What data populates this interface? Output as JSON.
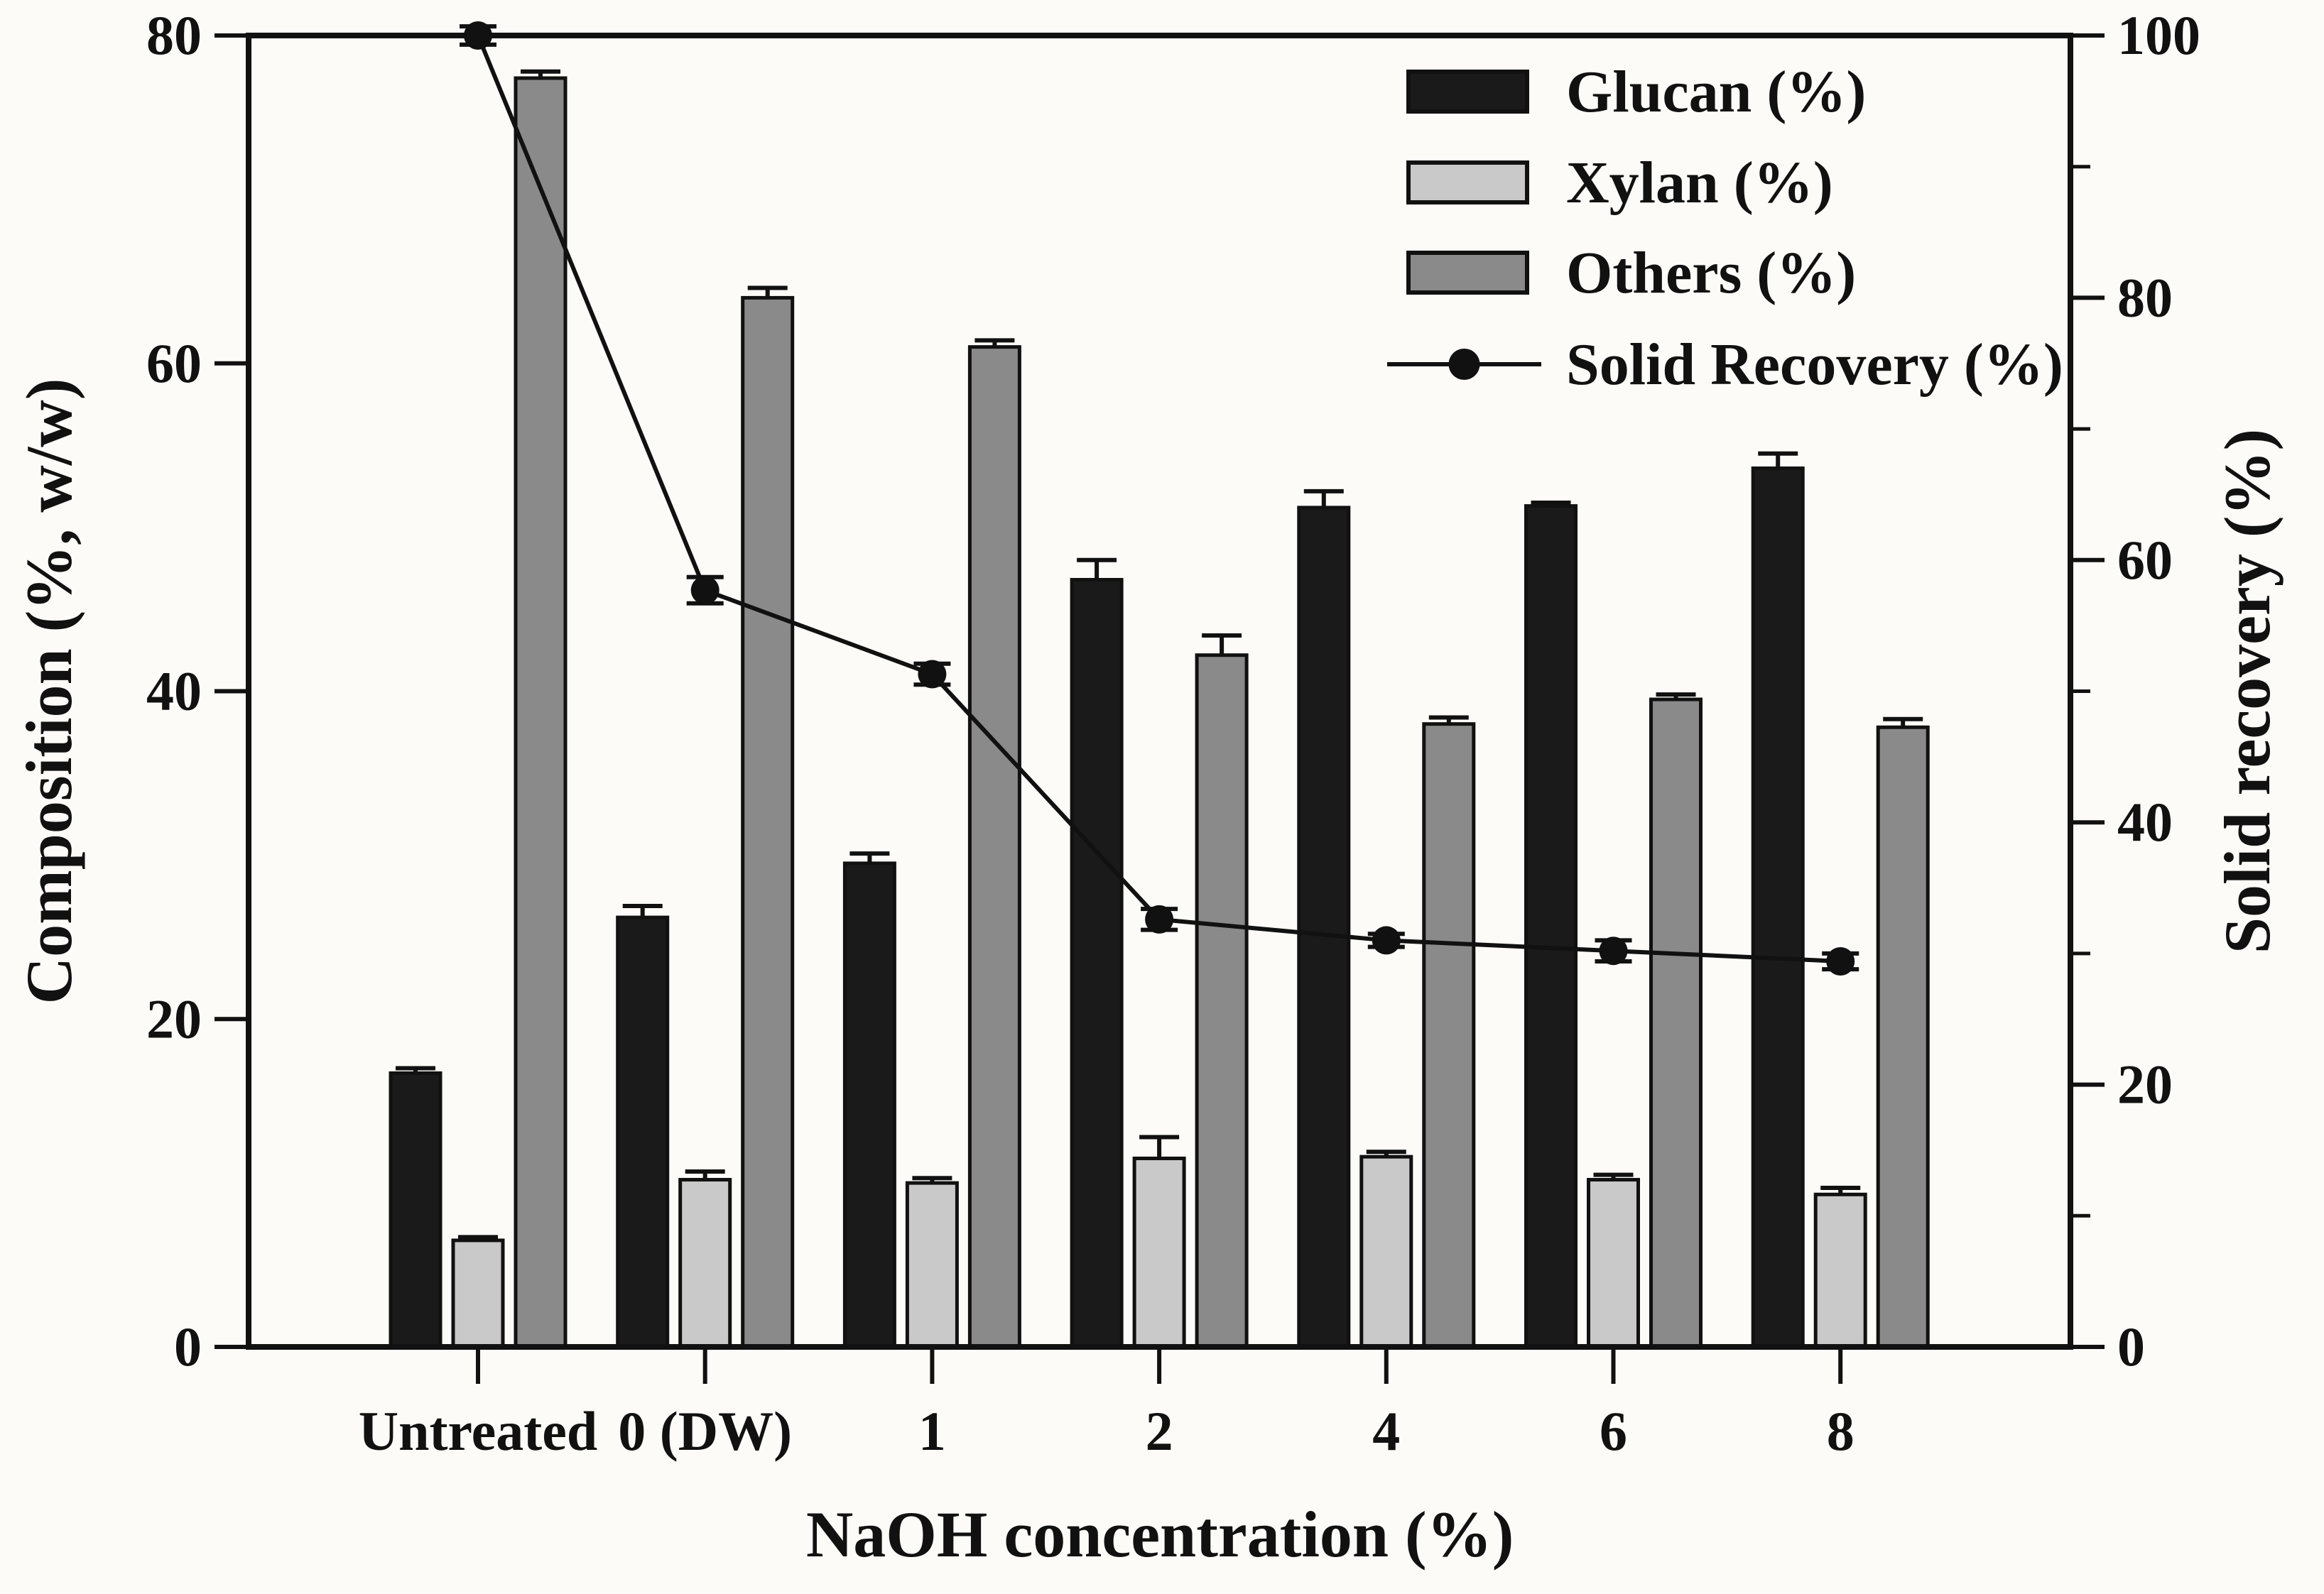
{
  "figure": {
    "background": "#fcfbf8",
    "frame_color": "#111111"
  },
  "chart_data": {
    "type": "bar",
    "subtype": "grouped-bars-with-line-overlay-dual-axis",
    "title": "",
    "categories": [
      "Untreated",
      "0 (DW)",
      "1",
      "2",
      "4",
      "6",
      "8"
    ],
    "xlabel": "NaOH concentration (%)",
    "left_axis": {
      "label": "Composition (%, w/w)",
      "min": 0,
      "max": 80,
      "ticks": [
        "0",
        "20",
        "40",
        "60",
        "80"
      ]
    },
    "right_axis": {
      "label": "Solid recovery (%)",
      "min": 0,
      "max": 100,
      "ticks": [
        "0",
        "20",
        "40",
        "60",
        "80",
        "100"
      ],
      "minor_ticks": [
        10,
        30,
        50,
        70,
        90
      ]
    },
    "grid": false,
    "legend": {
      "position": "top-right"
    },
    "series": [
      {
        "name": "Glucan (%)",
        "type": "bar",
        "axis": "left",
        "color": "#1a1a1a",
        "values": [
          16.7,
          26.2,
          29.5,
          46.8,
          51.2,
          51.3,
          53.6
        ],
        "errors": [
          0.3,
          0.7,
          0.6,
          1.2,
          1.0,
          0.2,
          0.9
        ]
      },
      {
        "name": "Xylan (%)",
        "type": "bar",
        "axis": "left",
        "color": "#c9c9c9",
        "values": [
          6.5,
          10.2,
          10.0,
          11.5,
          11.6,
          10.2,
          9.3
        ],
        "errors": [
          0.2,
          0.5,
          0.3,
          1.3,
          0.3,
          0.3,
          0.4
        ]
      },
      {
        "name": "Others (%)",
        "type": "bar",
        "axis": "left",
        "color": "#8a8a8a",
        "values": [
          77.4,
          64.0,
          61.0,
          42.2,
          38.0,
          39.5,
          37.8
        ],
        "errors": [
          0.4,
          0.6,
          0.4,
          1.2,
          0.4,
          0.3,
          0.5
        ]
      },
      {
        "name": "Solid Recovery (%)",
        "type": "line",
        "axis": "right",
        "color": "#111111",
        "values": [
          100,
          57.7,
          51.3,
          32.6,
          31.0,
          30.2,
          29.4
        ],
        "errors": [
          0.7,
          1.0,
          0.8,
          0.8,
          0.5,
          0.8,
          0.6
        ]
      }
    ]
  }
}
